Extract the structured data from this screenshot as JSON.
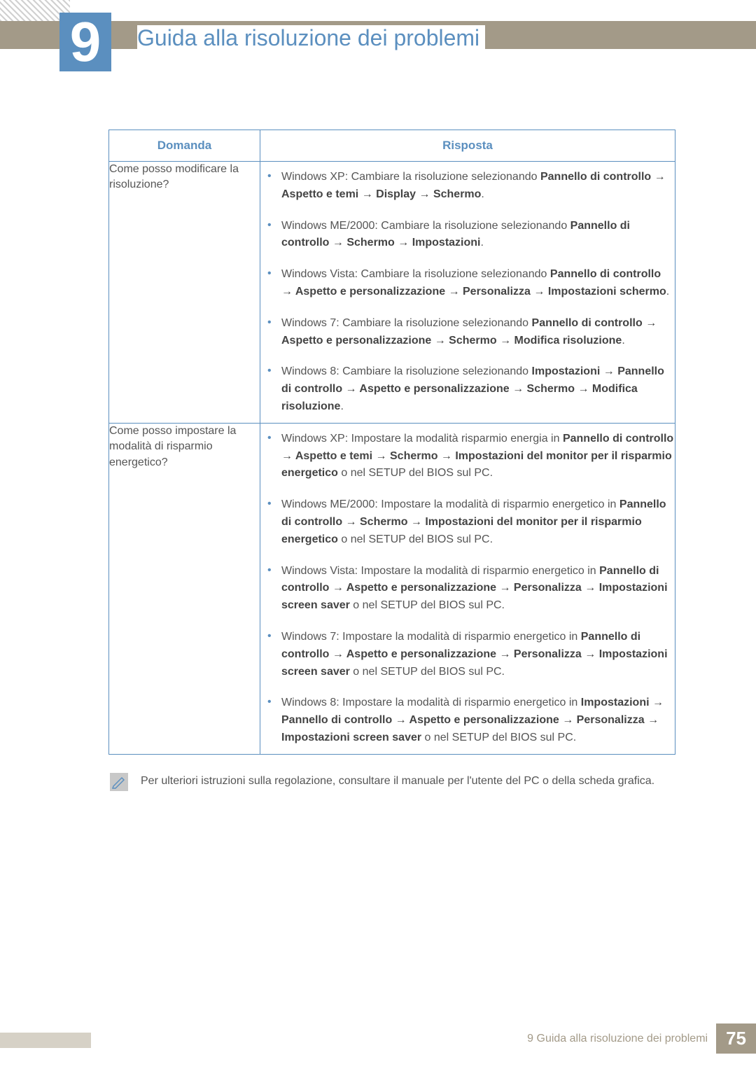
{
  "chapter": {
    "number": "9",
    "title": "Guida alla risoluzione dei problemi"
  },
  "table": {
    "headers": {
      "question": "Domanda",
      "answer": "Risposta"
    },
    "rows": [
      {
        "question": "Come posso modificare la risoluzione?",
        "answers": [
          {
            "prefix": "Windows XP: Cambiare la risoluzione selezionando ",
            "bold": "Pannello di controllo → Aspetto e temi → Display → Schermo",
            "suffix": "."
          },
          {
            "prefix": "Windows ME/2000: Cambiare la risoluzione selezionando ",
            "bold": "Pannello di controllo → Schermo → Impostazioni",
            "suffix": "."
          },
          {
            "prefix": "Windows Vista: Cambiare la risoluzione selezionando ",
            "bold": "Pannello di controllo → Aspetto e personalizzazione → Personalizza → Impostazioni schermo",
            "suffix": "."
          },
          {
            "prefix": "Windows 7: Cambiare la risoluzione selezionando ",
            "bold": "Pannello di controllo → Aspetto e personalizzazione → Schermo → Modifica risoluzione",
            "suffix": "."
          },
          {
            "prefix": "Windows 8: Cambiare la risoluzione selezionando ",
            "bold": "Impostazioni → Pannello di controllo → Aspetto e personalizzazione → Schermo → Modifica risoluzione",
            "suffix": "."
          }
        ]
      },
      {
        "question": "Come posso impostare la modalità di risparmio energetico?",
        "answers": [
          {
            "prefix": "Windows XP: Impostare la modalità risparmio energia in ",
            "bold": "Pannello di controllo → Aspetto e temi → Schermo → Impostazioni del monitor per il risparmio energetico",
            "suffix": " o nel SETUP del BIOS sul PC."
          },
          {
            "prefix": "Windows ME/2000: Impostare la modalità di risparmio energetico in ",
            "bold": "Pannello di controllo → Schermo → Impostazioni del monitor per il risparmio energetico",
            "suffix": " o nel SETUP del BIOS sul PC."
          },
          {
            "prefix": "Windows Vista: Impostare la modalità di risparmio energetico in ",
            "bold": "Pannello di controllo → Aspetto e personalizzazione → Personalizza → Impostazioni screen saver",
            "suffix": " o nel SETUP del BIOS sul PC."
          },
          {
            "prefix": "Windows 7: Impostare la modalità di risparmio energetico in ",
            "bold": "Pannello di controllo → Aspetto e personalizzazione → Personalizza → Impostazioni screen saver",
            "suffix": " o nel SETUP del BIOS sul PC."
          },
          {
            "prefix": "Windows 8: Impostare la modalità di risparmio energetico in ",
            "bold": "Impostazioni → Pannello di controllo → Aspetto e personalizzazione → Personalizza → Impostazioni screen saver",
            "suffix": " o nel SETUP del BIOS sul PC."
          }
        ]
      }
    ]
  },
  "note": "Per ulteriori istruzioni sulla regolazione, consultare il manuale per l'utente del PC o della scheda grafica.",
  "footer": {
    "text": "9 Guida alla risoluzione dei problemi",
    "page": "75"
  },
  "colors": {
    "accent": "#5b8fbf",
    "header_bar": "#a39a88",
    "text": "#555555"
  }
}
